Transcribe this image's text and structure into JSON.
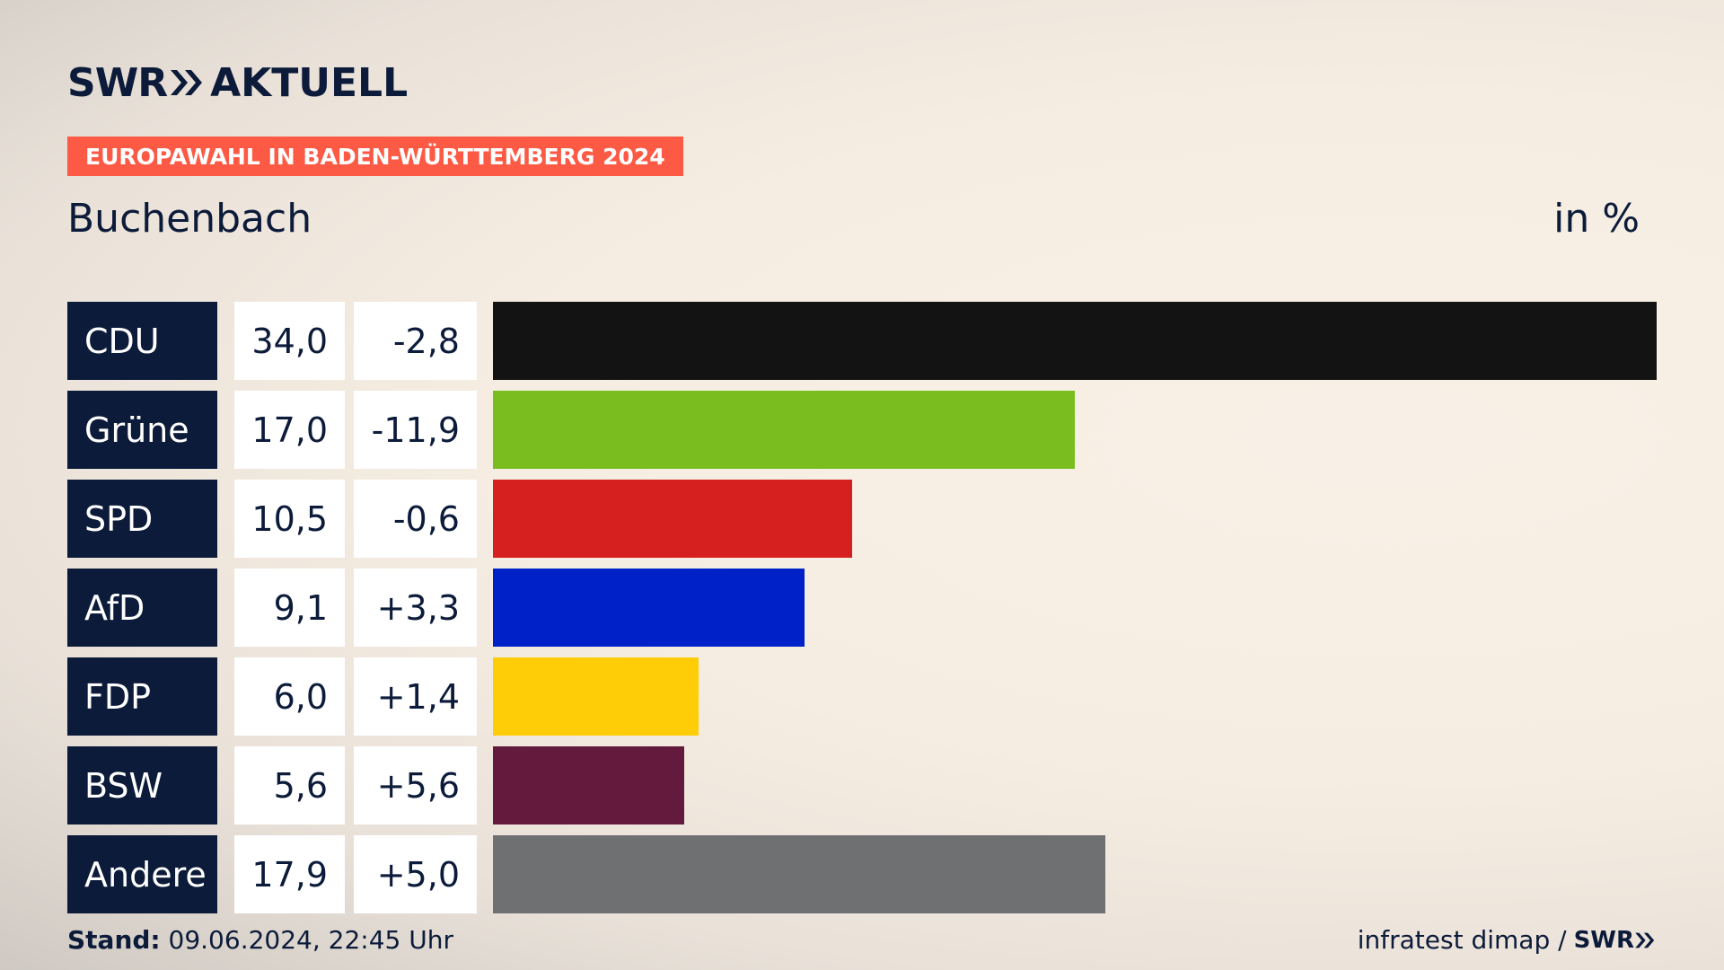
{
  "header": {
    "brand": "SWR",
    "product": "AKTUELL",
    "banner": "EUROPAWAHL IN BADEN-WÜRTTEMBERG 2024",
    "location": "Buchenbach",
    "unit": "in %"
  },
  "colors": {
    "navy": "#0c1b3a",
    "banner": "#fc5a44"
  },
  "chart_data": {
    "type": "bar",
    "orientation": "horizontal",
    "title": "Buchenbach",
    "unit": "in %",
    "categories": [
      "CDU",
      "Grüne",
      "SPD",
      "AfD",
      "FDP",
      "BSW",
      "Andere"
    ],
    "values": [
      34.0,
      17.0,
      10.5,
      9.1,
      6.0,
      5.6,
      17.9
    ],
    "rows": [
      {
        "party": "CDU",
        "value": "34,0",
        "diff": "-2,8",
        "color": "#131313"
      },
      {
        "party": "Grüne",
        "value": "17,0",
        "diff": "-11,9",
        "color": "#7abd1f"
      },
      {
        "party": "SPD",
        "value": "10,5",
        "diff": "-0,6",
        "color": "#d61f1f"
      },
      {
        "party": "AfD",
        "value": "9,1",
        "diff": "+3,3",
        "color": "#0021c8"
      },
      {
        "party": "FDP",
        "value": "6,0",
        "diff": "+1,4",
        "color": "#ffcc08"
      },
      {
        "party": "BSW",
        "value": "5,6",
        "diff": "+5,6",
        "color": "#641a3c"
      },
      {
        "party": "Andere",
        "value": "17,9",
        "diff": "+5,0",
        "color": "#6f7071"
      }
    ],
    "xlim": [
      0,
      34.0
    ]
  },
  "footer": {
    "stand_label": "Stand:",
    "stand_value": "09.06.2024, 22:45 Uhr",
    "source": "infratest dimap /",
    "source_brand": "SWR"
  }
}
